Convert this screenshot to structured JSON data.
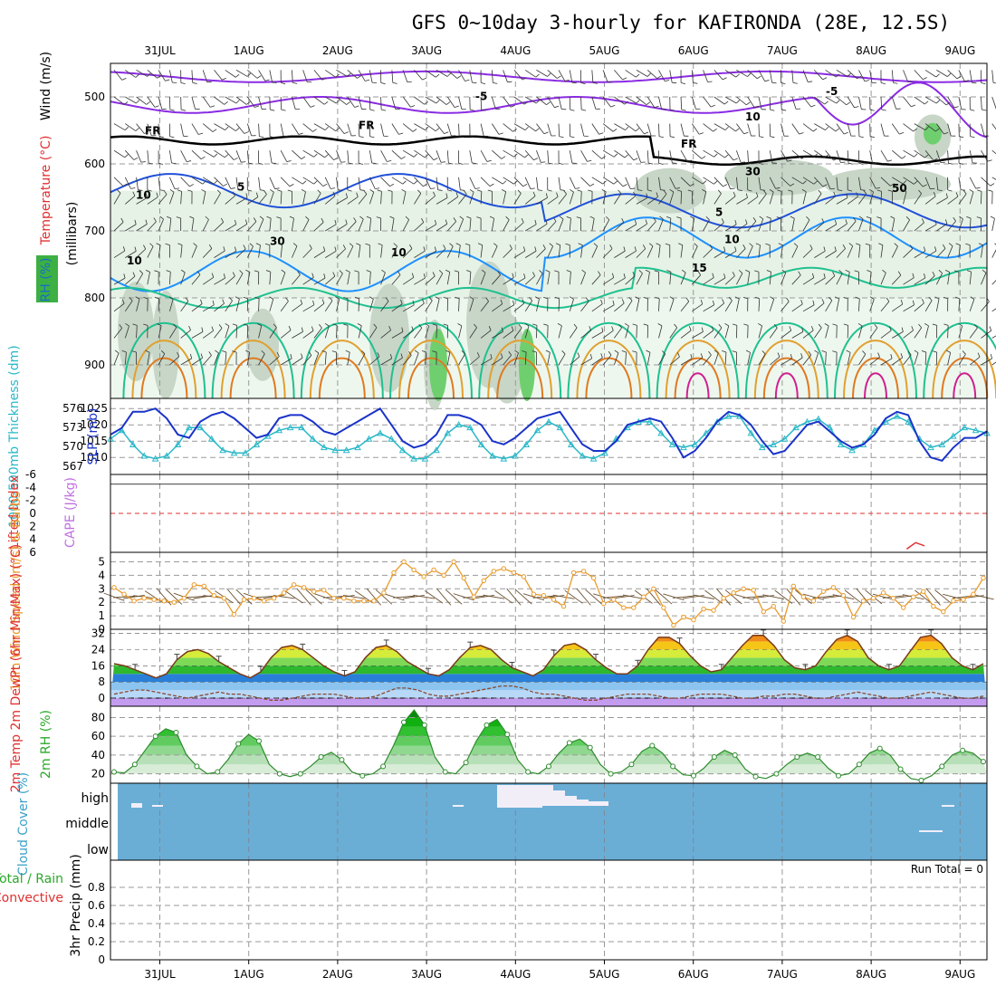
{
  "title": "GFS 0~10day 3-hourly for KAFIRONDA (28E, 12.5S)",
  "dates": [
    "31JUL",
    "1AUG",
    "2AUG",
    "3AUG",
    "4AUG",
    "5AUG",
    "6AUG",
    "7AUG",
    "8AUG",
    "9AUG"
  ],
  "run_total": "Run Total = 0",
  "colors": {
    "grid": "#9a9a9a",
    "slp": "#1a33c8",
    "thick": "#2ab8c8",
    "wind10": "#e89a2a",
    "rh": "#2e8b2e",
    "cloud": "#6aaed6",
    "li": "#e03030",
    "cape": "#c070e0"
  },
  "chart_data": [
    {
      "panel": "upper-air",
      "type": "heatmap",
      "ylabel_parts": [
        "Wind (m/s)",
        "Temperature (°C)",
        "RH (%)",
        "(millibars)"
      ],
      "yticks": [
        500,
        600,
        700,
        800,
        900
      ],
      "ylim": [
        450,
        950
      ],
      "contour_labels": [
        "-5",
        "-5",
        "FR",
        "FR",
        "FR",
        "5",
        "5",
        "10",
        "10",
        "10",
        "15",
        "10",
        "30",
        "30",
        "50",
        "10"
      ]
    },
    {
      "panel": "slp-thickness",
      "type": "line",
      "ylabel_left": "1000-500mb Thickness (dm)",
      "ylabel_right": "SLP (mb)",
      "left_ticks": [
        "576",
        "573",
        "570",
        "567"
      ],
      "right_ticks": [
        "1025",
        "1020",
        "1015",
        "1010"
      ],
      "series": [
        {
          "name": "SLP (mb)",
          "values": [
            1017,
            1019,
            1024,
            1024,
            1025,
            1022,
            1017,
            1016,
            1021,
            1023,
            1024,
            1022,
            1019,
            1016,
            1017,
            1022,
            1023,
            1023,
            1021,
            1018,
            1017,
            1019,
            1021,
            1023,
            1025,
            1020,
            1015,
            1013,
            1014,
            1017,
            1023,
            1023,
            1022,
            1020,
            1015,
            1014,
            1016,
            1019,
            1022,
            1023,
            1024,
            1019,
            1014,
            1012,
            1012,
            1015,
            1020,
            1021,
            1022,
            1021,
            1016,
            1010,
            1012,
            1016,
            1021,
            1024,
            1023,
            1020,
            1015,
            1011,
            1012,
            1016,
            1020,
            1021,
            1018,
            1015,
            1013,
            1014,
            1017,
            1022,
            1024,
            1023,
            1015,
            1010,
            1009,
            1013,
            1016,
            1016,
            1018
          ]
        },
        {
          "name": "Thickness (dm)",
          "values": [
            571,
            572.5,
            570,
            568,
            567.5,
            568,
            570,
            573,
            573,
            571,
            569,
            568.5,
            568.5,
            570,
            571.5,
            572.5,
            573,
            573,
            571,
            569.5,
            569,
            569,
            569.5,
            571,
            572,
            571,
            569,
            567.5,
            567.5,
            569,
            572,
            573.5,
            573,
            570,
            568,
            567.5,
            568,
            570,
            572.5,
            574,
            573,
            570,
            568,
            567.5,
            568.5,
            571,
            573,
            574,
            574,
            572,
            570,
            569.5,
            570,
            572,
            574,
            575,
            575,
            572,
            569.5,
            570,
            571,
            573,
            574,
            574.5,
            573,
            570,
            569,
            570,
            572.5,
            574,
            575,
            574,
            571,
            569.5,
            570,
            571.5,
            573,
            572.5,
            572
          ]
        }
      ]
    },
    {
      "panel": "instability",
      "type": "line",
      "ylabel_left": "Lifted Index",
      "ylabel_right": "CAPE (J/kg)",
      "left_ticks": [
        "-6",
        "-4",
        "-2",
        "0",
        "2",
        "4",
        "6"
      ],
      "ylim": [
        -6,
        6
      ],
      "series": [
        {
          "name": "Lifted Index",
          "x_day": [
            8.4,
            8.5,
            8.6
          ],
          "values": [
            5.5,
            4.5,
            5.0
          ]
        }
      ]
    },
    {
      "panel": "wind10m",
      "type": "line",
      "ylabel": "10m Wind Speed (m/s) & Barbs",
      "yticks": [
        0,
        1,
        2,
        3,
        4,
        5
      ],
      "ylim": [
        0,
        5.5
      ],
      "series": [
        {
          "name": "10m Wind Speed",
          "values": [
            3.1,
            2.6,
            2.1,
            2.3,
            2.2,
            2.1,
            2.0,
            2.3,
            3.3,
            3.2,
            2.5,
            2.3,
            1.1,
            2.2,
            2.3,
            2.1,
            2.3,
            2.7,
            3.3,
            3.1,
            2.8,
            2.9,
            2.3,
            2.3,
            2.1,
            2.1,
            2.1,
            2.7,
            4.2,
            5.0,
            4.4,
            3.9,
            4.4,
            4.0,
            5.0,
            3.8,
            2.4,
            3.6,
            4.3,
            4.5,
            4.2,
            3.9,
            2.6,
            2.5,
            2.2,
            1.7,
            4.2,
            4.3,
            3.8,
            1.9,
            2.2,
            1.6,
            1.6,
            2.4,
            3.0,
            1.6,
            0.3,
            0.9,
            0.7,
            1.5,
            1.4,
            2.3,
            2.7,
            3.0,
            2.9,
            1.3,
            1.7,
            0.6,
            3.2,
            2.4,
            2.1,
            2.8,
            3.1,
            2.5,
            0.9,
            2.1,
            2.3,
            2.7,
            2.3,
            1.6,
            2.4,
            2.8,
            1.7,
            1.3,
            2.1,
            2.2,
            2.6,
            3.8
          ]
        }
      ]
    },
    {
      "panel": "temperature",
      "type": "area",
      "ylabel": "2m Temp 2m DewPt (6hr Min/Max) (°C)",
      "yticks": [
        0,
        8,
        16,
        24,
        32
      ],
      "ylim": [
        -4,
        34
      ],
      "series": [
        {
          "name": "2m Temp",
          "values": [
            17,
            16,
            14,
            12,
            10,
            12,
            19,
            23,
            24,
            22,
            18,
            15,
            12,
            10,
            13,
            20,
            25,
            26,
            24,
            20,
            16,
            13,
            11,
            13,
            20,
            25,
            26,
            23,
            18,
            15,
            12,
            11,
            14,
            20,
            25,
            26,
            24,
            19,
            15,
            13,
            11,
            14,
            21,
            26,
            27,
            24,
            19,
            15,
            12,
            12,
            16,
            24,
            30,
            30,
            27,
            21,
            16,
            13,
            14,
            20,
            26,
            31,
            31,
            26,
            19,
            15,
            14,
            16,
            23,
            29,
            31,
            28,
            20,
            16,
            14,
            16,
            23,
            30,
            31,
            27,
            20,
            16,
            14,
            17
          ]
        },
        {
          "name": "2m DewPt",
          "values": [
            2,
            3,
            4,
            4,
            3,
            2,
            1,
            0,
            1,
            2,
            3,
            2,
            2,
            1,
            0,
            -1,
            -1,
            0,
            1,
            2,
            2,
            2,
            1,
            0,
            0,
            1,
            3,
            5,
            5,
            4,
            2,
            1,
            1,
            2,
            3,
            4,
            5,
            6,
            6,
            5,
            3,
            2,
            2,
            1,
            0,
            -1,
            -1,
            0,
            1,
            2,
            2,
            2,
            1,
            0,
            0,
            1,
            2,
            2,
            2,
            1,
            0,
            0,
            1,
            1,
            2,
            2,
            1,
            0,
            0,
            1,
            2,
            3,
            2,
            1,
            0,
            0,
            1,
            2,
            3,
            2,
            1,
            0,
            0,
            1
          ]
        }
      ]
    },
    {
      "panel": "rh2m",
      "type": "area",
      "ylabel": "2m RH (%)",
      "yticks": [
        20,
        40,
        60,
        80
      ],
      "ylim": [
        10,
        90
      ],
      "series": [
        {
          "name": "2m RH",
          "values": [
            22,
            21,
            30,
            45,
            60,
            68,
            64,
            40,
            28,
            20,
            22,
            35,
            52,
            62,
            55,
            30,
            20,
            17,
            20,
            28,
            38,
            43,
            35,
            22,
            18,
            20,
            28,
            50,
            75,
            88,
            72,
            38,
            22,
            20,
            32,
            55,
            72,
            78,
            62,
            35,
            22,
            20,
            28,
            42,
            53,
            57,
            48,
            30,
            20,
            22,
            30,
            44,
            50,
            42,
            28,
            19,
            18,
            26,
            38,
            45,
            40,
            25,
            17,
            15,
            20,
            30,
            38,
            42,
            38,
            26,
            18,
            20,
            30,
            42,
            47,
            40,
            25,
            15,
            13,
            18,
            28,
            40,
            45,
            42,
            33
          ]
        }
      ]
    },
    {
      "panel": "cloud",
      "type": "heatmap",
      "ylabel": "Cloud Cover (%)",
      "levels": [
        "high",
        "middle",
        "low"
      ]
    },
    {
      "panel": "precip",
      "type": "bar",
      "ylabel": "3hr Precip (mm)",
      "legend": [
        "Total / Rain",
        "Convective"
      ],
      "yticks": [
        "0",
        "0.2",
        "0.4",
        "0.6",
        "0.8"
      ],
      "ylim": [
        0,
        1
      ],
      "values": []
    }
  ]
}
